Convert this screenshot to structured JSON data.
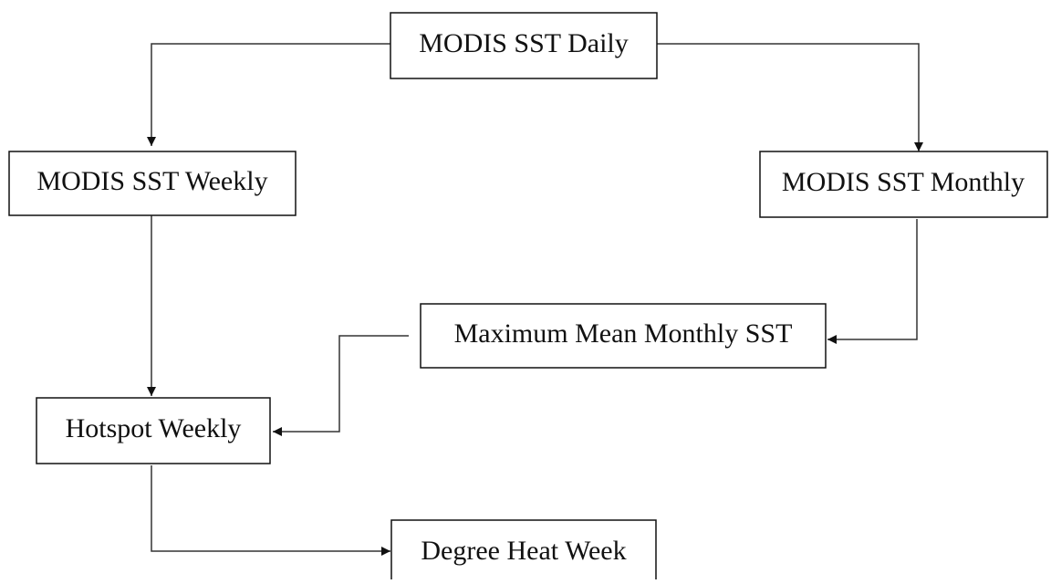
{
  "nodes": [
    {
      "label": "MODIS SST Daily"
    },
    {
      "label": "MODIS SST Weekly"
    },
    {
      "label": "MODIS SST Monthly"
    },
    {
      "label": "Maximum Mean Monthly SST"
    },
    {
      "label": "Hotspot Weekly"
    },
    {
      "label": "Degree Heat Week"
    }
  ]
}
